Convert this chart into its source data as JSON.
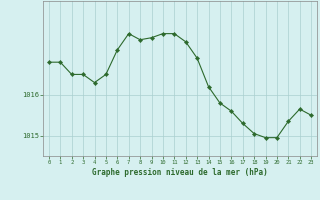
{
  "hours": [
    0,
    1,
    2,
    3,
    4,
    5,
    6,
    7,
    8,
    9,
    10,
    11,
    12,
    13,
    14,
    15,
    16,
    17,
    18,
    19,
    20,
    21,
    22,
    23
  ],
  "pressure": [
    1016.8,
    1016.8,
    1016.5,
    1016.5,
    1016.3,
    1016.5,
    1017.1,
    1017.5,
    1017.35,
    1017.4,
    1017.5,
    1017.5,
    1017.3,
    1016.9,
    1016.2,
    1015.8,
    1015.6,
    1015.3,
    1015.05,
    1014.95,
    1014.95,
    1015.35,
    1015.65,
    1015.5
  ],
  "line_color": "#2d6a2d",
  "marker_color": "#2d6a2d",
  "bg_color": "#d6f0f0",
  "grid_color": "#aacfcf",
  "axis_label_color": "#2d6a2d",
  "tick_label_color": "#2d6a2d",
  "xlabel": "Graphe pression niveau de la mer (hPa)",
  "ylim_min": 1014.5,
  "ylim_max": 1018.3,
  "ytick_positions": [
    1015.0,
    1016.0
  ],
  "ytick_labels": [
    "1015",
    "1016"
  ]
}
